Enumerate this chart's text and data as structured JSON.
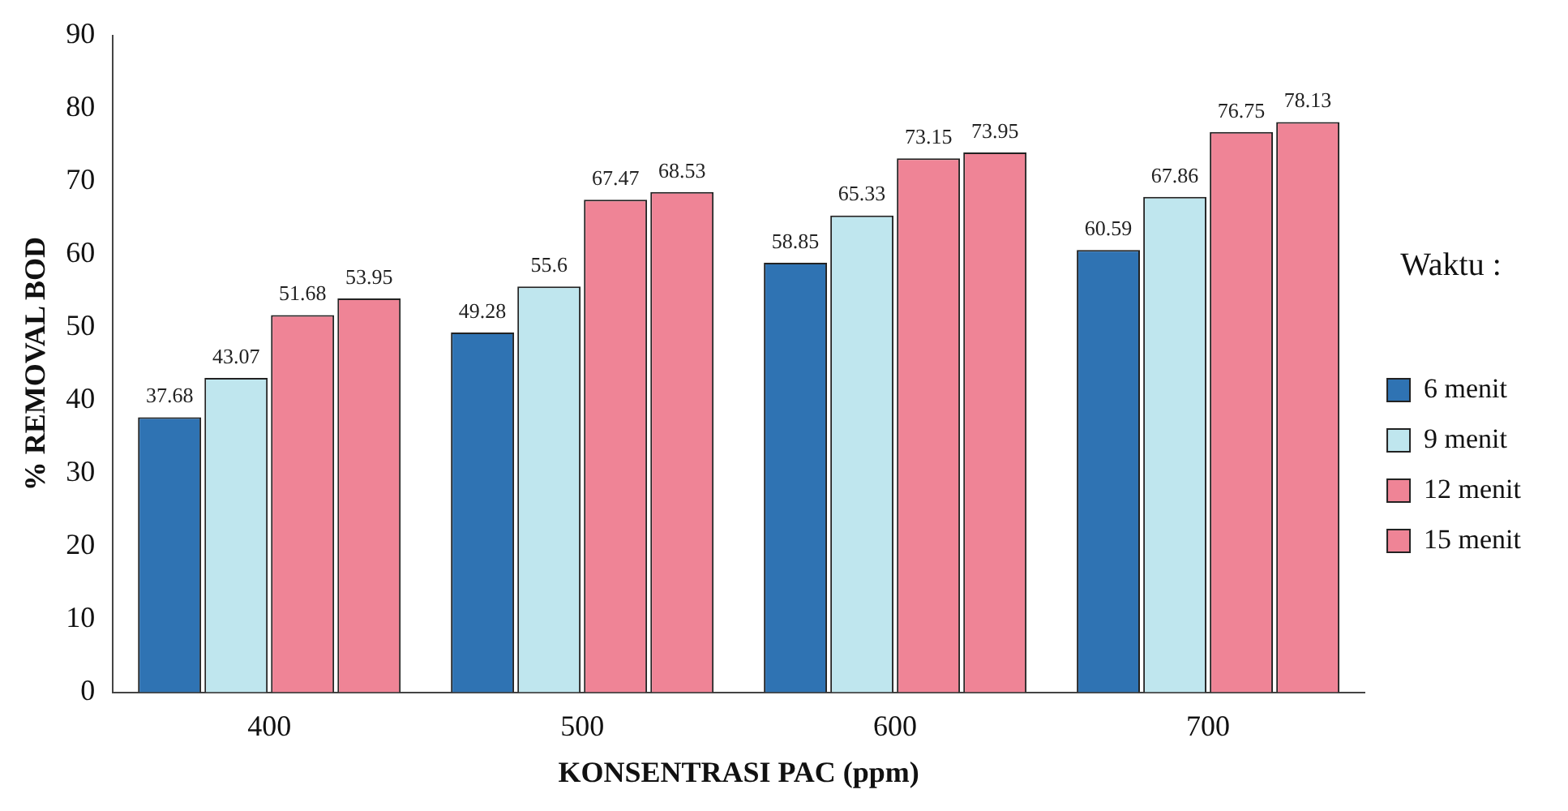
{
  "chart_data": {
    "type": "bar",
    "xlabel": "KONSENTRASI PAC (ppm)",
    "ylabel": "% REMOVAL BOD",
    "legend_title": "Waktu :",
    "categories": [
      "400",
      "500",
      "600",
      "700"
    ],
    "series": [
      {
        "name": "6 menit",
        "color": "#2f73b3",
        "values": [
          37.68,
          49.28,
          58.85,
          60.59
        ]
      },
      {
        "name": "9 menit",
        "color": "#bfe6ee",
        "values": [
          43.07,
          55.6,
          65.33,
          67.86
        ]
      },
      {
        "name": "12 menit",
        "color": "#ef8496",
        "values": [
          51.68,
          67.47,
          73.15,
          76.75
        ]
      },
      {
        "name": "15 menit",
        "color": "#ef8496",
        "values": [
          53.95,
          68.53,
          73.95,
          78.13
        ]
      }
    ],
    "ylim": [
      0,
      90
    ],
    "yticks": [
      0,
      10,
      20,
      30,
      40,
      50,
      60,
      70,
      80,
      90
    ],
    "grid": false,
    "legend": "right",
    "data_labels": true
  }
}
